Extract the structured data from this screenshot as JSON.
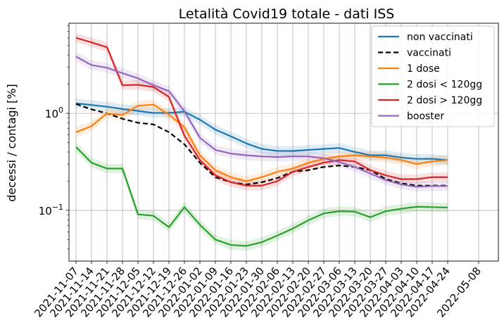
{
  "chart_data": {
    "type": "line",
    "title": "Letalità Covid19 totale - dati ISS",
    "ylabel": "decessi / contagi [%]",
    "xlabel": "",
    "y_scale": "log",
    "ylim": [
      0.03,
      8.5
    ],
    "y_ticks": [
      {
        "value": 0.1,
        "base": "10",
        "exp": "−1"
      },
      {
        "value": 1,
        "base": "10",
        "exp": "0"
      }
    ],
    "grid": true,
    "legend_position": "top-right",
    "x_tick_labels": [
      "2021-11-07",
      "2021-11-14",
      "2021-11-21",
      "2021-11-28",
      "2021-12-05",
      "2021-12-12",
      "2021-12-19",
      "2021-12-26",
      "2022-01-02",
      "2022-01-09",
      "2022-01-16",
      "2022-01-23",
      "2022-01-30",
      "2022-02-06",
      "2022-02-13",
      "2022-02-20",
      "2022-02-27",
      "2022-03-06",
      "2022-03-13",
      "2022-03-20",
      "2022-03-27",
      "2022-04-03",
      "2022-04-10",
      "2022-04-17",
      "2022-04-24",
      "2022-05-08"
    ],
    "x": [
      "2021-11-07",
      "2021-11-14",
      "2021-11-21",
      "2021-11-28",
      "2021-12-05",
      "2021-12-12",
      "2021-12-19",
      "2021-12-26",
      "2022-01-02",
      "2022-01-09",
      "2022-01-16",
      "2022-01-23",
      "2022-01-30",
      "2022-02-06",
      "2022-02-13",
      "2022-02-20",
      "2022-02-27",
      "2022-03-06",
      "2022-03-13",
      "2022-03-20",
      "2022-03-27",
      "2022-04-03",
      "2022-04-10",
      "2022-04-17",
      "2022-04-24"
    ],
    "series": [
      {
        "name": "non vaccinati",
        "color": "#1f77b4",
        "dash": false,
        "band": true,
        "values": [
          1.27,
          1.22,
          1.17,
          1.11,
          1.06,
          1.01,
          1.01,
          1.04,
          0.86,
          0.68,
          0.58,
          0.49,
          0.43,
          0.41,
          0.41,
          0.42,
          0.43,
          0.44,
          0.4,
          0.37,
          0.37,
          0.35,
          0.34,
          0.34,
          0.33
        ]
      },
      {
        "name": "vaccinati",
        "color": "#000000",
        "dash": true,
        "band": false,
        "values": [
          1.25,
          1.1,
          1.0,
          0.88,
          0.8,
          0.77,
          0.64,
          0.48,
          0.31,
          0.22,
          0.195,
          0.185,
          0.195,
          0.215,
          0.25,
          0.26,
          0.28,
          0.29,
          0.28,
          0.26,
          0.21,
          0.19,
          0.18,
          0.18,
          0.18
        ]
      },
      {
        "name": "1 dose",
        "color": "#ff7f0e",
        "dash": false,
        "band": true,
        "values": [
          0.64,
          0.74,
          1.0,
          0.96,
          1.2,
          1.23,
          0.97,
          0.72,
          0.37,
          0.26,
          0.22,
          0.2,
          0.22,
          0.25,
          0.27,
          0.31,
          0.34,
          0.36,
          0.37,
          0.36,
          0.35,
          0.33,
          0.3,
          0.32,
          0.33
        ]
      },
      {
        "name": "2 dosi < 120gg",
        "color": "#2ca02c",
        "dash": false,
        "band": true,
        "values": [
          0.45,
          0.31,
          0.27,
          0.27,
          0.091,
          0.088,
          0.067,
          0.108,
          0.071,
          0.05,
          0.044,
          0.043,
          0.047,
          0.055,
          0.065,
          0.079,
          0.093,
          0.098,
          0.097,
          0.085,
          0.098,
          0.104,
          0.109,
          0.108,
          0.107
        ]
      },
      {
        "name": "2 dosi > 120gg",
        "color": "#d62728",
        "dash": false,
        "band": true,
        "values": [
          6.0,
          5.4,
          4.8,
          1.95,
          1.97,
          1.87,
          1.48,
          0.59,
          0.33,
          0.23,
          0.195,
          0.18,
          0.18,
          0.2,
          0.25,
          0.28,
          0.31,
          0.33,
          0.32,
          0.26,
          0.23,
          0.21,
          0.21,
          0.22,
          0.22
        ]
      },
      {
        "name": "booster",
        "color": "#9467bd",
        "dash": false,
        "band": true,
        "values": [
          3.85,
          3.15,
          2.95,
          2.6,
          2.3,
          1.95,
          1.7,
          1.05,
          0.56,
          0.42,
          0.385,
          0.37,
          0.36,
          0.355,
          0.36,
          0.36,
          0.345,
          0.315,
          0.28,
          0.24,
          0.205,
          0.185,
          0.175,
          0.178,
          0.178
        ]
      }
    ]
  }
}
